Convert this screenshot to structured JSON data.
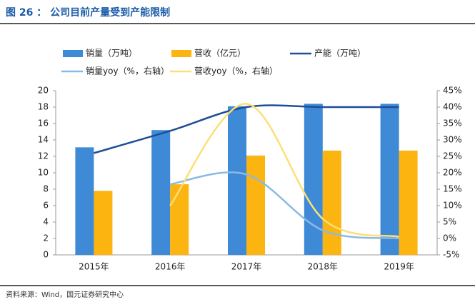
{
  "chart_data": {
    "type": "bar-line",
    "title": "图 26 ： 公司目前产量受到产能限制",
    "source": "资料来源：Wind，国元证券研究中心",
    "categories": [
      "2015年",
      "2016年",
      "2017年",
      "2018年",
      "2019年"
    ],
    "series": [
      {
        "name": "销量（万吨）",
        "kind": "bar",
        "color": "#3f8ad6",
        "values": [
          13.1,
          15.2,
          18.1,
          18.4,
          18.4
        ]
      },
      {
        "name": "营收（亿元）",
        "kind": "bar",
        "color": "#fbb410",
        "values": [
          7.8,
          8.6,
          12.1,
          12.7,
          12.7
        ]
      },
      {
        "name": "产能（万吨）",
        "kind": "line",
        "color": "#1f4e96",
        "values": [
          12.4,
          15.1,
          18.0,
          18.0,
          18.0
        ]
      },
      {
        "name": "销量yoy（%，右轴）",
        "kind": "line",
        "axis": "y2",
        "color": "#8cb9e2",
        "values": [
          null,
          16.5,
          19.5,
          2.5,
          0
        ]
      },
      {
        "name": "营收yoy（%，右轴）",
        "kind": "line",
        "axis": "y2",
        "color": "#fddf78",
        "values": [
          null,
          10,
          41,
          6,
          0.5
        ]
      }
    ],
    "ylim": [
      0,
      20
    ],
    "yticks": [
      0,
      2,
      4,
      6,
      8,
      10,
      12,
      14,
      16,
      18,
      20
    ],
    "y2lim": [
      -5,
      45
    ],
    "y2ticks": [
      {
        "value": -5,
        "label": "-5%"
      },
      {
        "value": 0,
        "label": "0%"
      },
      {
        "value": 5,
        "label": "5%"
      },
      {
        "value": 10,
        "label": "10%"
      },
      {
        "value": 15,
        "label": "15%"
      },
      {
        "value": 20,
        "label": "20%"
      },
      {
        "value": 25,
        "label": "25%"
      },
      {
        "value": 30,
        "label": "30%"
      },
      {
        "value": 35,
        "label": "35%"
      },
      {
        "value": 40,
        "label": "40%"
      },
      {
        "value": 45,
        "label": "45%"
      }
    ]
  }
}
